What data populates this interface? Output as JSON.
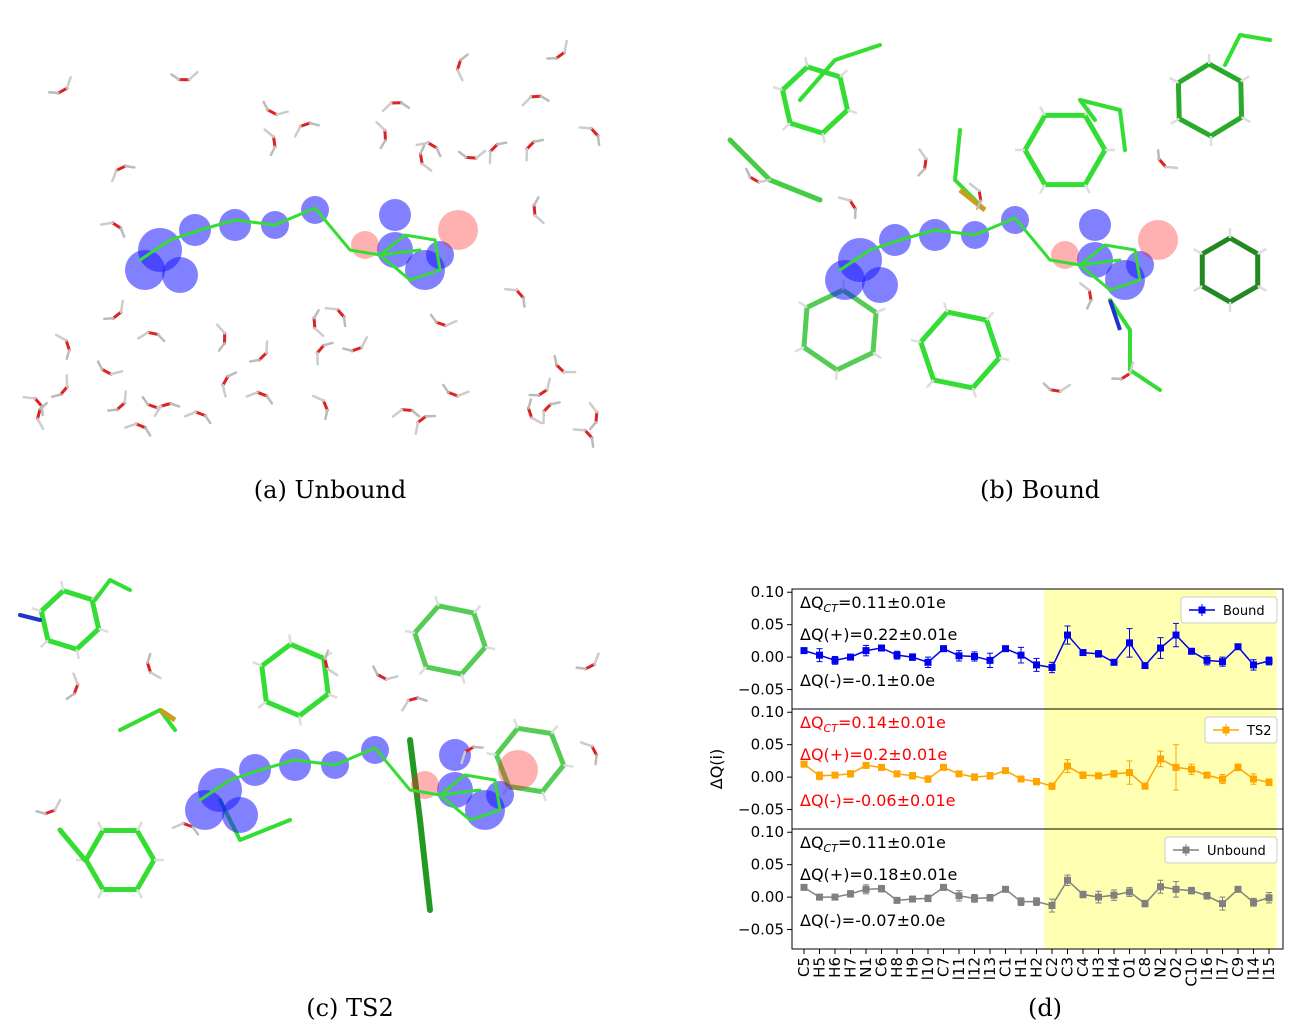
{
  "captions": {
    "a": "(a) Unbound",
    "b": "(b) Bound",
    "c": "(c) TS2",
    "d": "(d)"
  },
  "colors": {
    "bound": "#0000ee",
    "ts2": "#ffa500",
    "unbound": "#808080",
    "highlight": "#ffffaa",
    "carbon": "#33dd33",
    "oxygen": "#dd2222",
    "nitrogen": "#2233cc",
    "sulfur": "#c8a020",
    "hydrogen": "#e0e0e0",
    "density_pos": "#1a1aff",
    "density_neg": "#ff2020"
  },
  "chart_data": {
    "type": "line",
    "ylabel": "ΔQ(i)",
    "ylim": [
      -0.08,
      0.105
    ],
    "yticks": [
      "0.10",
      "0.05",
      "0.00",
      "−0.05"
    ],
    "ytick_values": [
      0.1,
      0.05,
      0.0,
      -0.05
    ],
    "categories": [
      "C5",
      "H5",
      "H6",
      "H7",
      "N1",
      "C6",
      "H8",
      "H9",
      "H10",
      "C7",
      "H11",
      "H12",
      "H13",
      "C1",
      "H1",
      "H2",
      "C2",
      "C3",
      "C4",
      "H3",
      "H4",
      "O1",
      "C8",
      "N2",
      "O2",
      "C10",
      "H16",
      "H17",
      "C9",
      "H14",
      "H15"
    ],
    "tick_labels": [
      "C5",
      "H5",
      "H6",
      "H7",
      "N1",
      "C6",
      "H8",
      "H9",
      "l10",
      "C7",
      "l11",
      "l12",
      "l13",
      "C1",
      "H1",
      "H2",
      "C2",
      "C3",
      "C4",
      "H3",
      "H4",
      "O1",
      "C8",
      "N2",
      "O2",
      "C10",
      "l16",
      "l17",
      "C9",
      "l14",
      "l15"
    ],
    "highlight_from_index": 15.5,
    "highlight_to_index": 30.5,
    "series": [
      {
        "name": "Bound",
        "values": [
          0.01,
          0.003,
          -0.005,
          0.0,
          0.01,
          0.014,
          0.003,
          0.0,
          -0.008,
          0.013,
          0.002,
          0.001,
          -0.005,
          0.013,
          0.003,
          -0.012,
          -0.016,
          0.034,
          0.007,
          0.005,
          -0.008,
          0.022,
          -0.013,
          0.014,
          0.034,
          0.009,
          -0.005,
          -0.007,
          0.016,
          -0.012,
          -0.006
        ],
        "errors": [
          0.004,
          0.01,
          0.006,
          0.004,
          0.008,
          0.003,
          0.006,
          0.005,
          0.008,
          0.003,
          0.008,
          0.007,
          0.011,
          0.003,
          0.012,
          0.01,
          0.008,
          0.014,
          0.004,
          0.005,
          0.004,
          0.022,
          0.004,
          0.016,
          0.018,
          0.003,
          0.007,
          0.007,
          0.003,
          0.008,
          0.006
        ],
        "annotations": [
          "ΔQ_CT=0.11±0.01e",
          "ΔQ(+)=0.22±0.01e",
          "ΔQ(-)=-0.1±0.0e"
        ]
      },
      {
        "name": "TS2",
        "values": [
          0.02,
          0.002,
          0.003,
          0.005,
          0.018,
          0.015,
          0.005,
          0.002,
          -0.003,
          0.015,
          0.005,
          0.0,
          0.002,
          0.01,
          -0.003,
          -0.007,
          -0.014,
          0.017,
          0.003,
          0.002,
          0.005,
          0.007,
          -0.014,
          0.028,
          0.015,
          0.012,
          0.003,
          -0.003,
          0.015,
          -0.003,
          -0.008
        ],
        "errors": [
          0.004,
          0.006,
          0.004,
          0.005,
          0.004,
          0.004,
          0.004,
          0.005,
          0.005,
          0.004,
          0.004,
          0.005,
          0.005,
          0.004,
          0.004,
          0.005,
          0.005,
          0.01,
          0.005,
          0.004,
          0.005,
          0.018,
          0.004,
          0.012,
          0.035,
          0.008,
          0.004,
          0.007,
          0.005,
          0.008,
          0.005
        ],
        "annotations": [
          "ΔQ_CT=0.14±0.01e",
          "ΔQ(+)=0.2±0.01e",
          "ΔQ(-)=-0.06±0.01e"
        ]
      },
      {
        "name": "Unbound",
        "values": [
          0.015,
          0.0,
          0.0,
          0.005,
          0.012,
          0.013,
          -0.005,
          -0.003,
          -0.002,
          0.015,
          0.002,
          -0.002,
          -0.001,
          0.012,
          -0.007,
          -0.007,
          -0.013,
          0.026,
          0.004,
          0.0,
          0.003,
          0.008,
          -0.01,
          0.016,
          0.012,
          0.01,
          0.002,
          -0.01,
          0.012,
          -0.008,
          -0.001
        ],
        "errors": [
          0.004,
          0.004,
          0.004,
          0.005,
          0.007,
          0.005,
          0.004,
          0.004,
          0.005,
          0.004,
          0.008,
          0.006,
          0.005,
          0.004,
          0.006,
          0.006,
          0.01,
          0.008,
          0.005,
          0.009,
          0.008,
          0.007,
          0.005,
          0.01,
          0.012,
          0.005,
          0.005,
          0.01,
          0.004,
          0.006,
          0.008
        ],
        "annotations": [
          "ΔQ_CT=0.11±0.01e",
          "ΔQ(+)=0.18±0.01e",
          "ΔQ(-)=-0.07±0.0e"
        ]
      }
    ]
  }
}
